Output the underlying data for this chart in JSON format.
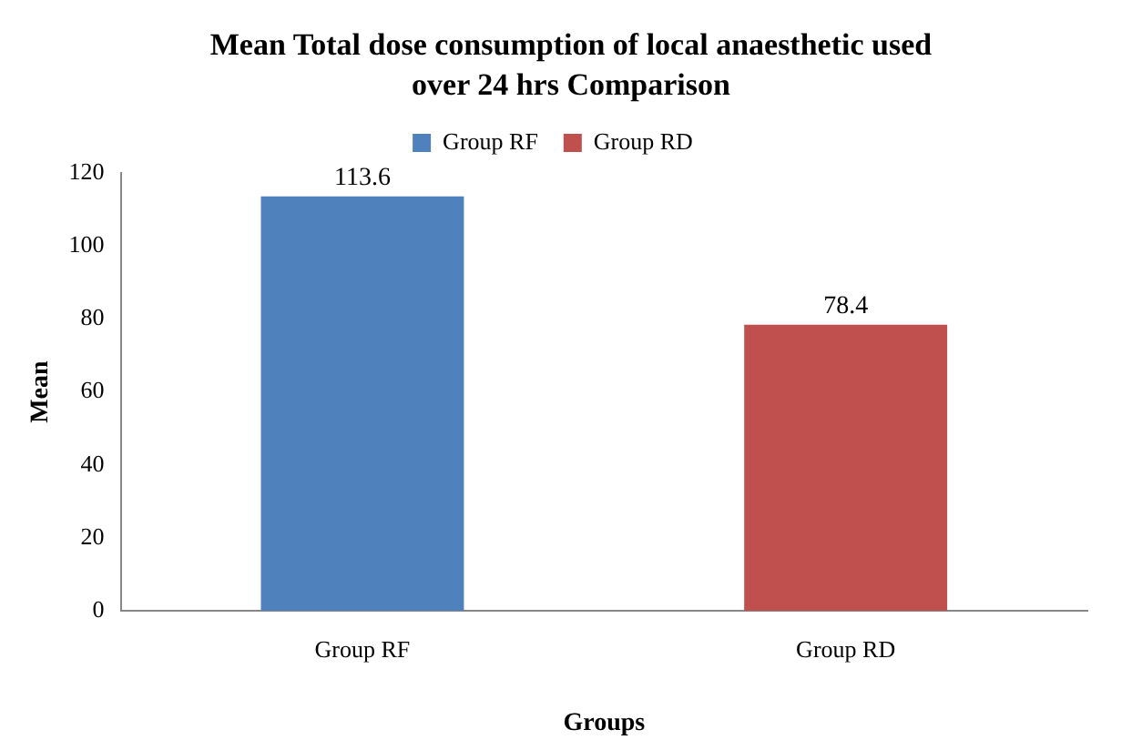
{
  "chart_data": {
    "type": "bar",
    "title": "Mean Total dose consumption of local anaesthetic used over 24 hrs Comparison",
    "xlabel": "Groups",
    "ylabel": "Mean",
    "categories": [
      "Group RF",
      "Group RD"
    ],
    "series": [
      {
        "name": "Group RF",
        "color": "#4f81bd",
        "values": [
          113.6,
          null
        ]
      },
      {
        "name": "Group RD",
        "color": "#c0504d",
        "values": [
          null,
          78.4
        ]
      }
    ],
    "ylim": [
      0,
      120
    ],
    "yticks": [
      0,
      20,
      40,
      60,
      80,
      100,
      120
    ],
    "grid": false,
    "legend": "top",
    "data_labels": true
  }
}
